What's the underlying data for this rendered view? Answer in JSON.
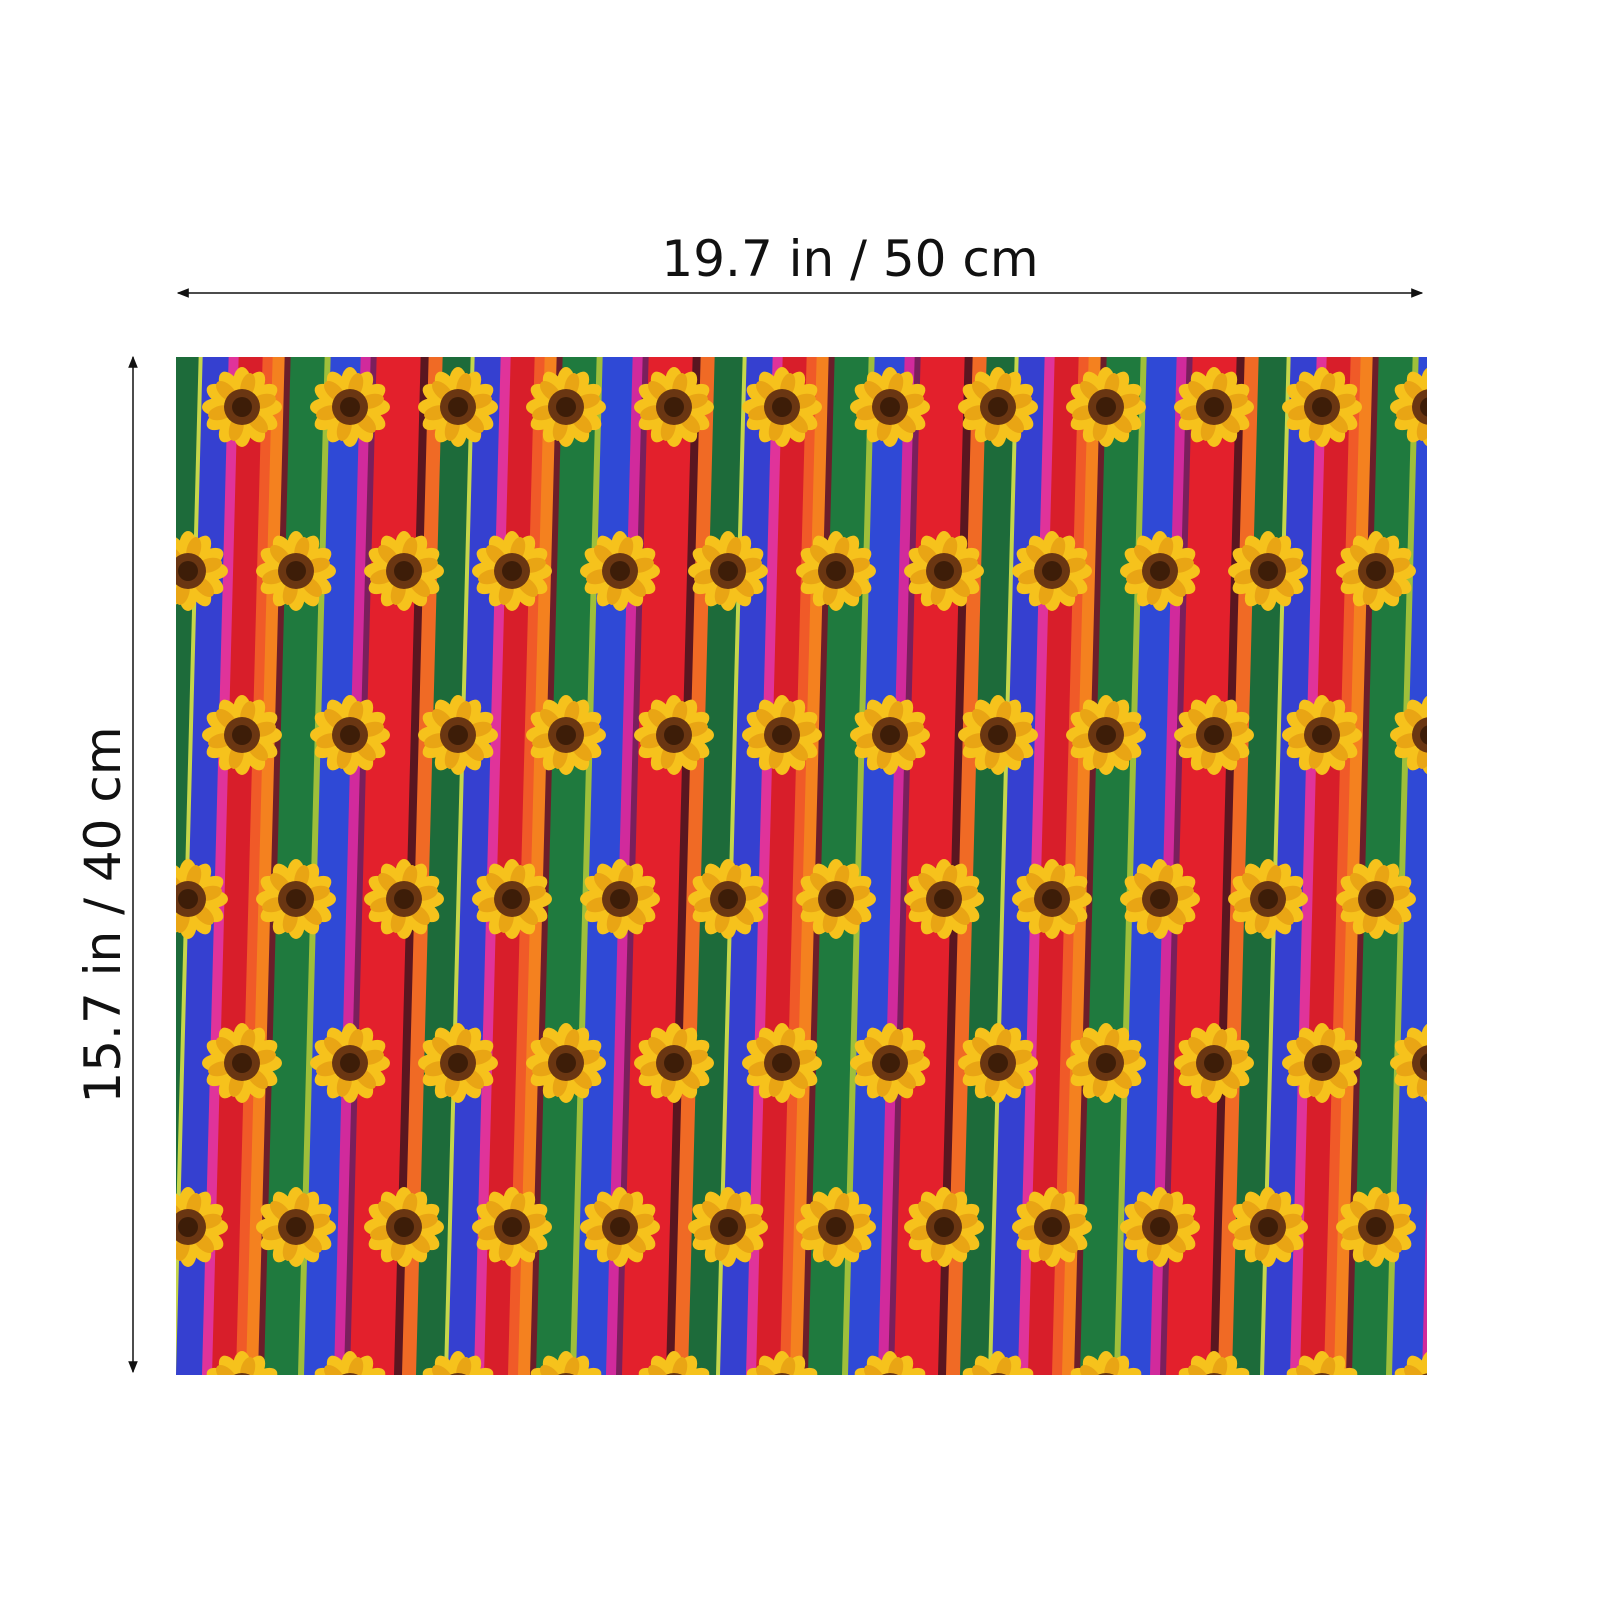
{
  "dimensions": {
    "width": "19.7 in / 50 cm",
    "height": "15.7 in / 40 cm"
  }
}
